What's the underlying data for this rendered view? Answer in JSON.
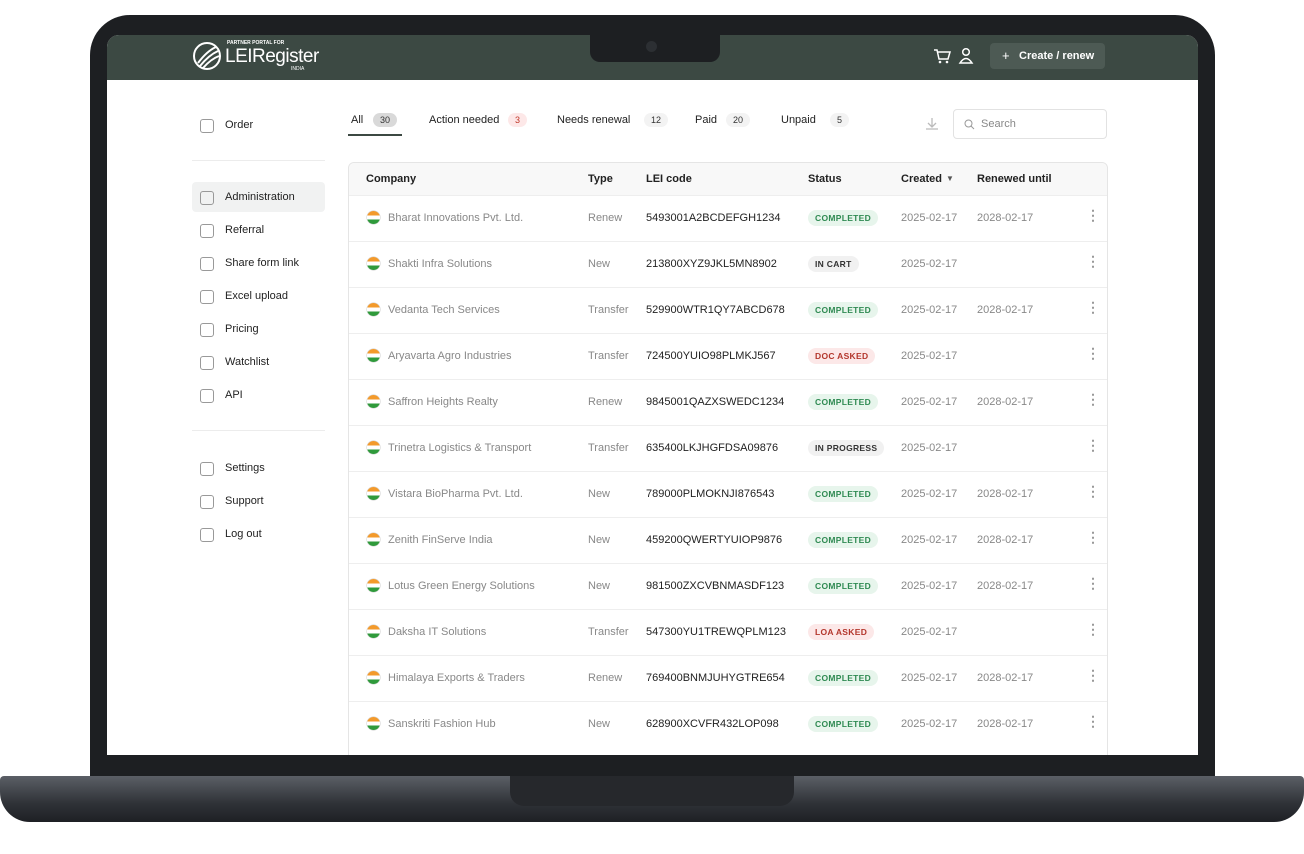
{
  "header": {
    "logo_small": "PARTNER PORTAL FOR",
    "logo": "LEIRegister",
    "logo_sub": "INDIA",
    "create_button": "Create / renew"
  },
  "sidebar": {
    "items": [
      "Order",
      "Administration",
      "Referral",
      "Share form link",
      "Excel upload",
      "Pricing",
      "Watchlist",
      "API",
      "Settings",
      "Support",
      "Log out"
    ]
  },
  "tabs": [
    {
      "label": "All",
      "count": "30"
    },
    {
      "label": "Action needed",
      "count": "3"
    },
    {
      "label": "Needs renewal",
      "count": "12"
    },
    {
      "label": "Paid",
      "count": "20"
    },
    {
      "label": "Unpaid",
      "count": "5"
    }
  ],
  "search_placeholder": "Search",
  "table": {
    "columns": [
      "Company",
      "Type",
      "LEI code",
      "Status",
      "Created",
      "Renewed until"
    ],
    "rows": [
      {
        "company": "Bharat Innovations Pvt. Ltd.",
        "type": "Renew",
        "lei": "5493001A2BCDEFGH1234",
        "status": "COMPLETED",
        "created": "2025-02-17",
        "renewed": "2028-02-17"
      },
      {
        "company": "Shakti Infra Solutions",
        "type": "New",
        "lei": "213800XYZ9JKL5MN8902",
        "status": "IN CART",
        "created": "2025-02-17"
      },
      {
        "company": "Vedanta Tech Services",
        "type": "Transfer",
        "lei": "529900WTR1QY7ABCD678",
        "status": "COMPLETED",
        "created": "2025-02-17",
        "renewed": "2028-02-17"
      },
      {
        "company": "Aryavarta Agro Industries",
        "type": "Transfer",
        "lei": "724500YUIO98PLMKJ567",
        "status": "DOC ASKED",
        "created": "2025-02-17"
      },
      {
        "company": "Saffron Heights Realty",
        "type": "Renew",
        "lei": "9845001QAZXSWEDC1234",
        "status": "COMPLETED",
        "created": "2025-02-17",
        "renewed": "2028-02-17"
      },
      {
        "company": "Trinetra Logistics & Transport",
        "type": "Transfer",
        "lei": "635400LKJHGFDSA09876",
        "status": "IN PROGRESS",
        "created": "2025-02-17"
      },
      {
        "company": "Vistara BioPharma Pvt. Ltd.",
        "type": "New",
        "lei": "789000PLMOKNJI876543",
        "status": "COMPLETED",
        "created": "2025-02-17",
        "renewed": "2028-02-17"
      },
      {
        "company": "Zenith FinServe India",
        "type": "New",
        "lei": "459200QWERTYUIOP9876",
        "status": "COMPLETED",
        "created": "2025-02-17",
        "renewed": "2028-02-17"
      },
      {
        "company": "Lotus Green Energy Solutions",
        "type": "New",
        "lei": "981500ZXCVBNMASDF123",
        "status": "COMPLETED",
        "created": "2025-02-17",
        "renewed": "2028-02-17"
      },
      {
        "company": "Daksha IT Solutions",
        "type": "Transfer",
        "lei": "547300YU1TREWQPLM123",
        "status": "LOA ASKED",
        "created": "2025-02-17"
      },
      {
        "company": "Himalaya Exports & Traders",
        "type": "Renew",
        "lei": "769400BNMJUHYGTRE654",
        "status": "COMPLETED",
        "created": "2025-02-17",
        "renewed": "2028-02-17"
      },
      {
        "company": "Sanskriti Fashion Hub",
        "type": "New",
        "lei": "628900XCVFR432LOP098",
        "status": "COMPLETED",
        "created": "2025-02-17",
        "renewed": "2028-02-17"
      }
    ]
  }
}
